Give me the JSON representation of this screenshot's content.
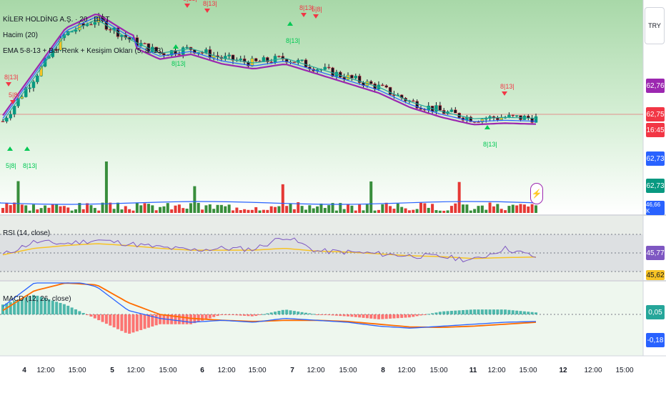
{
  "symbol": {
    "title": "KİLER HOLDİNG A.Ş. · 20 · BIST"
  },
  "currency_button": "TRY",
  "indicators": {
    "volume": "Hacim (20)",
    "ema": "EMA 5-8-13 + Bar Renk + Kesişim Okları (5, 8, 13)",
    "rsi": "RSI (14, close)",
    "macd": "MACD (12, 26, close)"
  },
  "price_scale": [
    {
      "label": "62,76",
      "color": "#9c27b0"
    },
    {
      "label": "62,75",
      "color": "#f23645"
    },
    {
      "label": "16:45",
      "color": "#f23645"
    },
    {
      "label": "62,73",
      "color": "#2962ff"
    },
    {
      "label": "62,73",
      "color": "#089981"
    },
    {
      "label": "46,66 K",
      "color": "#2962ff"
    }
  ],
  "rsi_scale": [
    {
      "label": "45,77",
      "color": "#7e57c2"
    },
    {
      "label": "45,62",
      "color": "#f7c325"
    }
  ],
  "macd_scale": [
    {
      "label": "0,05",
      "color": "#26a69a"
    },
    {
      "label": "-0,18",
      "color": "#2962ff"
    }
  ],
  "signals": [
    "5|8|",
    "8|13|",
    "5|8|",
    "8|13|",
    "8|13|",
    "5|8|",
    "8|13|",
    "8|13|",
    "8|13|",
    "8|13|",
    "8|13|",
    "8|13|"
  ],
  "time_axis": [
    {
      "label": "4",
      "day": true
    },
    {
      "label": "12:00",
      "day": false
    },
    {
      "label": "15:00",
      "day": false
    },
    {
      "label": "5",
      "day": true
    },
    {
      "label": "12:00",
      "day": false
    },
    {
      "label": "15:00",
      "day": false
    },
    {
      "label": "6",
      "day": true
    },
    {
      "label": "12:00",
      "day": false
    },
    {
      "label": "15:00",
      "day": false
    },
    {
      "label": "7",
      "day": true
    },
    {
      "label": "12:00",
      "day": false
    },
    {
      "label": "15:00",
      "day": false
    },
    {
      "label": "8",
      "day": true
    },
    {
      "label": "12:00",
      "day": false
    },
    {
      "label": "15:00",
      "day": false
    },
    {
      "label": "11",
      "day": true
    },
    {
      "label": "12:00",
      "day": false
    },
    {
      "label": "15:00",
      "day": false
    },
    {
      "label": "12",
      "day": true
    },
    {
      "label": "12:00",
      "day": false
    },
    {
      "label": "15:00",
      "day": false
    }
  ],
  "colors": {
    "ema5": "#26a69a",
    "ema8": "#2962ff",
    "ema13": "#9c27b0",
    "up": "#089981",
    "down": "#f23645",
    "rsi": "#7e57c2",
    "rsi_ma": "#f7c325",
    "macd": "#2962ff",
    "signal": "#ff6d00"
  },
  "chart_data": [
    {
      "type": "line",
      "title": "KİLER HOLDİNG A.Ş. · 20 · BIST",
      "x": [
        "4",
        "12:00",
        "15:00",
        "5",
        "12:00",
        "15:00",
        "6",
        "12:00",
        "15:00",
        "7",
        "12:00",
        "15:00",
        "8",
        "12:00",
        "15:00",
        "11",
        "12:00",
        "15:00"
      ],
      "series": [
        {
          "name": "EMA 5-8-13",
          "values": [
            62.7,
            63.6,
            64.5,
            64.8,
            64.4,
            64.1,
            64.2,
            64.0,
            63.9,
            64.0,
            63.8,
            63.6,
            63.4,
            63.1,
            62.9,
            62.75,
            62.78,
            62.76
          ]
        }
      ],
      "last_price": 62.75
    },
    {
      "type": "line",
      "title": "RSI (14, close)",
      "series": [
        {
          "name": "RSI",
          "values": [
            48,
            62,
            60,
            64,
            60,
            56,
            53,
            55,
            54,
            68,
            52,
            51,
            49,
            47,
            46,
            42,
            55,
            45.77
          ]
        },
        {
          "name": "MA",
          "values": [
            48,
            55,
            58,
            60,
            58,
            55,
            53,
            53,
            53,
            55,
            52,
            51,
            49,
            47,
            46,
            44,
            45,
            45.62
          ]
        }
      ],
      "ylim": [
        30,
        70
      ]
    },
    {
      "type": "bar",
      "title": "MACD (12, 26, close)",
      "series": [
        {
          "name": "MACD",
          "values": [
            0.2,
            0.8,
            0.9,
            0.7,
            0.1,
            -0.1,
            -0.2,
            -0.15,
            -0.2,
            -0.1,
            -0.15,
            -0.2,
            -0.3,
            -0.35,
            -0.3,
            -0.25,
            -0.2,
            -0.18
          ]
        },
        {
          "name": "Signal",
          "values": [
            0.1,
            0.6,
            0.8,
            0.75,
            0.3,
            0.0,
            -0.1,
            -0.15,
            -0.18,
            -0.15,
            -0.15,
            -0.18,
            -0.25,
            -0.32,
            -0.33,
            -0.3,
            -0.25,
            -0.2
          ]
        }
      ],
      "histogram_last": 0.05
    }
  ]
}
